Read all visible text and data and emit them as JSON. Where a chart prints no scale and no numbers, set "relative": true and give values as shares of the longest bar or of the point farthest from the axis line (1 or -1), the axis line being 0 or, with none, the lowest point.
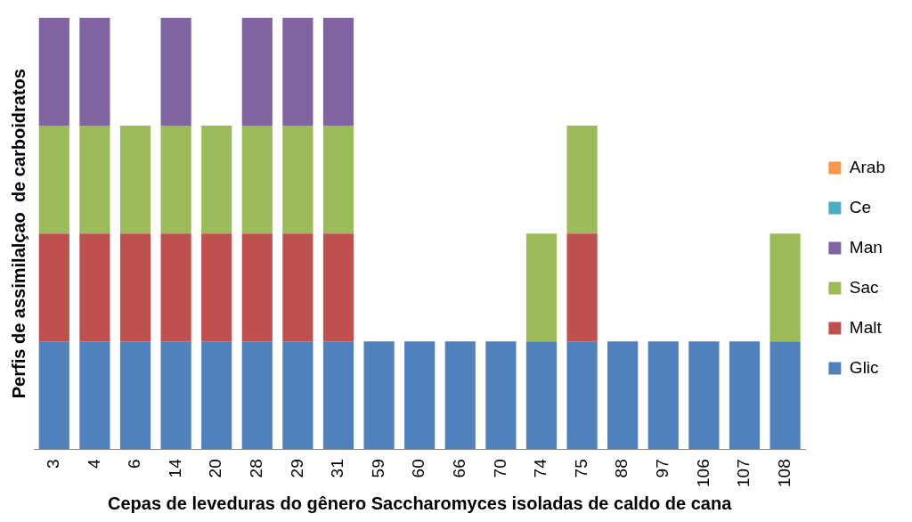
{
  "chart_data": {
    "type": "bar",
    "stacked": true,
    "relative": true,
    "xlabel": "Cepas de leveduras do gênero Saccharomyces isoladas de caldo de cana",
    "ylabel": "Perfis de assimilalçao  de carboidratos",
    "categories": [
      "3",
      "4",
      "6",
      "14",
      "20",
      "28",
      "29",
      "31",
      "59",
      "60",
      "66",
      "70",
      "74",
      "75",
      "88",
      "97",
      "106",
      "107",
      "108"
    ],
    "legend": "right",
    "grid": false,
    "series": [
      {
        "name": "Glic",
        "color": "#4f81bd",
        "values": [
          0.25,
          0.25,
          0.25,
          0.25,
          0.25,
          0.25,
          0.25,
          0.25,
          0.25,
          0.25,
          0.25,
          0.25,
          0.25,
          0.25,
          0.25,
          0.25,
          0.25,
          0.25,
          0.25
        ]
      },
      {
        "name": "Malt",
        "color": "#c0504d",
        "values": [
          0.25,
          0.25,
          0.25,
          0.25,
          0.25,
          0.25,
          0.25,
          0.25,
          0,
          0,
          0,
          0,
          0,
          0.25,
          0,
          0,
          0,
          0,
          0
        ]
      },
      {
        "name": "Sac",
        "color": "#9bbb59",
        "values": [
          0.25,
          0.25,
          0.25,
          0.25,
          0.25,
          0.25,
          0.25,
          0.25,
          0,
          0,
          0,
          0,
          0.25,
          0.25,
          0,
          0,
          0,
          0,
          0.25
        ]
      },
      {
        "name": "Man",
        "color": "#8064a2",
        "values": [
          0.25,
          0.25,
          0,
          0.25,
          0,
          0.25,
          0.25,
          0.25,
          0,
          0,
          0,
          0,
          0,
          0,
          0,
          0,
          0,
          0,
          0
        ]
      },
      {
        "name": "Ce",
        "color": "#4bacc6",
        "values": [
          0,
          0,
          0,
          0,
          0,
          0,
          0,
          0,
          0,
          0,
          0,
          0,
          0,
          0,
          0,
          0,
          0,
          0,
          0
        ]
      },
      {
        "name": "Arab",
        "color": "#f79646",
        "values": [
          0,
          0,
          0,
          0,
          0,
          0,
          0,
          0,
          0,
          0,
          0,
          0,
          0,
          0,
          0,
          0,
          0,
          0,
          0
        ]
      }
    ]
  }
}
